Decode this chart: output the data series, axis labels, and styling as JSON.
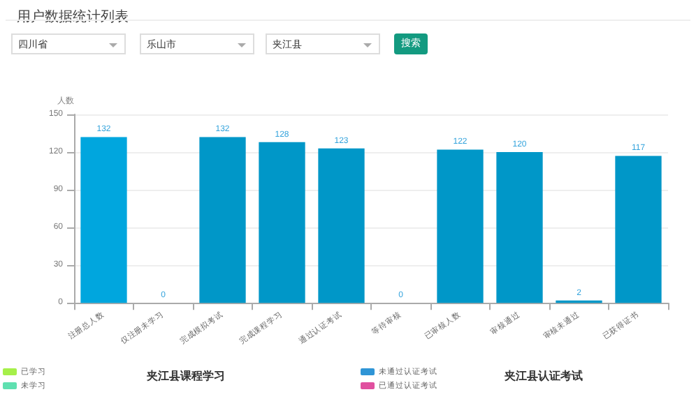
{
  "chart_data": [
    {
      "type": "bar",
      "title": "用户数据统计列表",
      "ylabel": "人数",
      "annotations": [
        "四川省",
        "乐山市",
        "夹江县",
        "搜索"
      ],
      "categories": [
        "注册总人数",
        "仅注册未学习",
        "完成模拟考试",
        "完成课程学习",
        "通过认证考试",
        "等待审核",
        "已审核人数",
        "审核通过",
        "审核未通过",
        "已获得证书"
      ],
      "values": [
        132,
        0,
        132,
        128,
        123,
        0,
        122,
        120,
        2,
        117
      ],
      "colors": [
        "#00a6de",
        "#0097c8",
        "#0097c8",
        "#0097c8",
        "#0097c8",
        "#0097c8",
        "#0097c8",
        "#0097c8",
        "#0097c8",
        "#0097c8"
      ],
      "ylim": [
        0,
        150
      ],
      "yticks": [
        0,
        30,
        60,
        90,
        120,
        150
      ],
      "grid": "y",
      "data_labels": true,
      "legend": false
    },
    {
      "type": "other",
      "title": "夹江县课程学习",
      "legend": "left",
      "series": [
        {
          "name": "已学习",
          "color": "#a6f04a"
        },
        {
          "name": "未学习",
          "color": "#5fe0b0"
        }
      ]
    },
    {
      "type": "other",
      "title": "夹江县认证考试",
      "legend": "left",
      "series": [
        {
          "name": "未通过认证考试",
          "color": "#2f95d6"
        },
        {
          "name": "已通过认证考试",
          "color": "#e0509f"
        }
      ]
    }
  ]
}
